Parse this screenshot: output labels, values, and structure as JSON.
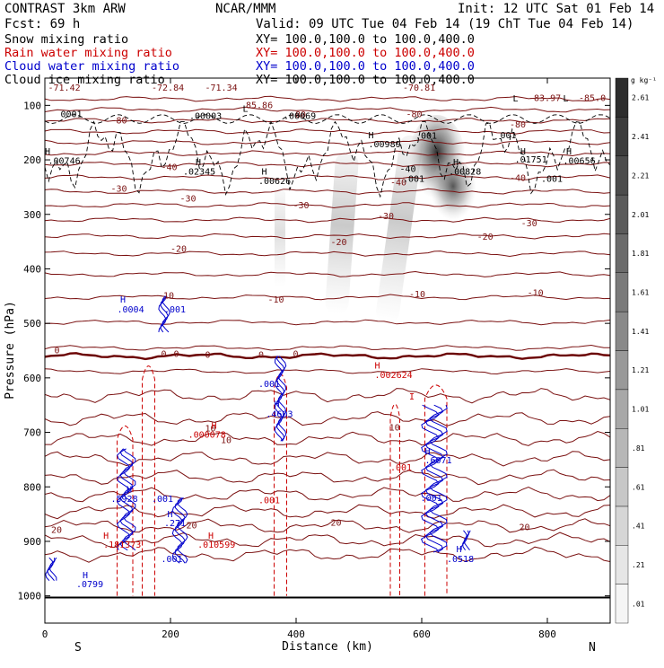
{
  "header": {
    "left_title": "CONTRAST  3km ARW",
    "center_title": "NCAR/MMM",
    "init": "Init: 12 UTC Sat 01 Feb 14",
    "fcst": "Fcst:   69 h",
    "valid": "Valid: 09 UTC Tue 04 Feb 14 (19 ChT Tue 04 Feb 14)"
  },
  "fields": [
    {
      "name": "Snow mixing ratio",
      "xy": "XY= 100.0,100.0 to 100.0,400.0",
      "color": "#000000"
    },
    {
      "name": "Rain water mixing ratio",
      "xy": "XY= 100.0,100.0 to 100.0,400.0",
      "color": "#cc0000"
    },
    {
      "name": "Cloud water mixing ratio",
      "xy": "XY= 100.0,100.0 to 100.0,400.0",
      "color": "#0000cc"
    },
    {
      "name": "Cloud ice mixing ratio",
      "xy": "XY= 100.0,100.0 to 100.0,400.0",
      "color": "#000000"
    }
  ],
  "chart_data": {
    "type": "cross-section",
    "xlabel": "Distance (km)",
    "ylabel": "Pressure (hPa)",
    "xlim": [
      0,
      900
    ],
    "ylim": [
      1050,
      50
    ],
    "xticks": [
      0,
      200,
      400,
      600,
      800
    ],
    "yticks": [
      100,
      200,
      300,
      400,
      500,
      600,
      700,
      800,
      900,
      1000
    ],
    "end_labels": {
      "left": "S",
      "right": "N"
    },
    "colorbar": {
      "unit": "g kg⁻¹",
      "levels": [
        0.01,
        0.21,
        0.41,
        0.61,
        0.81,
        1.01,
        1.21,
        1.41,
        1.61,
        1.81,
        2.01,
        2.21,
        2.41,
        2.61
      ],
      "labels": [
        ".01",
        ".21",
        ".41",
        ".61",
        ".81",
        "1.01",
        "1.21",
        "1.41",
        "1.61",
        "1.81",
        "2.01",
        "2.21",
        "2.41",
        "2.61"
      ]
    },
    "temperature_contours": {
      "color": "#7a1010",
      "pressures": [
        88,
        108,
        128,
        148,
        168,
        188,
        208,
        232,
        258,
        283,
        310,
        340,
        372,
        410,
        452,
        498,
        545,
        588,
        632,
        675,
        712,
        748,
        782,
        814,
        845,
        872,
        898,
        924
      ],
      "labels": [
        {
          "x": 105,
          "p": 127,
          "text": "-80"
        },
        {
          "x": 390,
          "p": 116,
          "text": "-80"
        },
        {
          "x": 575,
          "p": 115,
          "text": "-80"
        },
        {
          "x": 740,
          "p": 134,
          "text": "-80"
        },
        {
          "x": 185,
          "p": 212,
          "text": "-40"
        },
        {
          "x": 550,
          "p": 240,
          "text": "-40"
        },
        {
          "x": 740,
          "p": 232,
          "text": "-40"
        },
        {
          "x": 105,
          "p": 252,
          "text": "-30"
        },
        {
          "x": 215,
          "p": 270,
          "text": "-30"
        },
        {
          "x": 395,
          "p": 282,
          "text": "-30"
        },
        {
          "x": 530,
          "p": 302,
          "text": "-30"
        },
        {
          "x": 758,
          "p": 315,
          "text": "-30"
        },
        {
          "x": 200,
          "p": 362,
          "text": "-20"
        },
        {
          "x": 455,
          "p": 350,
          "text": "-20"
        },
        {
          "x": 688,
          "p": 340,
          "text": "-20"
        },
        {
          "x": 180,
          "p": 448,
          "text": "-10"
        },
        {
          "x": 355,
          "p": 455,
          "text": "-10"
        },
        {
          "x": 580,
          "p": 445,
          "text": "-10"
        },
        {
          "x": 768,
          "p": 443,
          "text": "-10"
        },
        {
          "x": 15,
          "p": 548,
          "text": "0"
        },
        {
          "x": 185,
          "p": 555,
          "text": "0"
        },
        {
          "x": 205,
          "p": 555,
          "text": "0"
        },
        {
          "x": 255,
          "p": 557,
          "text": "0"
        },
        {
          "x": 340,
          "p": 557,
          "text": "0"
        },
        {
          "x": 395,
          "p": 555,
          "text": "0"
        },
        {
          "x": 255,
          "p": 692,
          "text": "10"
        },
        {
          "x": 548,
          "p": 690,
          "text": "10"
        },
        {
          "x": 280,
          "p": 713,
          "text": "10"
        },
        {
          "x": 10,
          "p": 878,
          "text": "20"
        },
        {
          "x": 225,
          "p": 870,
          "text": "20"
        },
        {
          "x": 455,
          "p": 865,
          "text": "20"
        },
        {
          "x": 755,
          "p": 873,
          "text": "20"
        }
      ]
    },
    "temperature_extrema": [
      {
        "x": 5,
        "p": 73,
        "text": "-71.42"
      },
      {
        "x": 170,
        "p": 73,
        "text": "-72.84"
      },
      {
        "x": 255,
        "p": 73,
        "text": "-71.34"
      },
      {
        "x": 570,
        "p": 73,
        "text": "-70.81"
      },
      {
        "x": 770,
        "p": 92,
        "text": "-83.97"
      },
      {
        "x": 850,
        "p": 92,
        "text": "-85.0"
      },
      {
        "x": 320,
        "p": 105,
        "text": "85.86"
      }
    ],
    "rain_freezing_line_p": 560,
    "rain_columns": [
      {
        "x0": 115,
        "x1": 140,
        "p_top": 680
      },
      {
        "x0": 155,
        "x1": 175,
        "p_top": 570
      },
      {
        "x0": 365,
        "x1": 385,
        "p_top": 585
      },
      {
        "x0": 550,
        "x1": 565,
        "p_top": 640
      },
      {
        "x0": 605,
        "x1": 640,
        "p_top": 605
      }
    ],
    "rain_labels": [
      {
        "x": 93,
        "p": 895,
        "text": "H"
      },
      {
        "x": 93,
        "p": 912,
        "text": ".181373"
      },
      {
        "x": 260,
        "p": 895,
        "text": "H"
      },
      {
        "x": 243,
        "p": 912,
        "text": ".010599"
      },
      {
        "x": 265,
        "p": 693,
        "text": "H"
      },
      {
        "x": 228,
        "p": 710,
        "text": ".000078"
      },
      {
        "x": 525,
        "p": 583,
        "text": "H"
      },
      {
        "x": 525,
        "p": 600,
        "text": ".002624"
      },
      {
        "x": 580,
        "p": 640,
        "text": "I"
      },
      {
        "x": 550,
        "p": 770,
        "text": ".001"
      },
      {
        "x": 340,
        "p": 830,
        "text": ".001"
      }
    ],
    "cloud_water_labels": [
      {
        "x": 120,
        "p": 462,
        "text": "H"
      },
      {
        "x": 115,
        "p": 480,
        "text": ".0004"
      },
      {
        "x": 190,
        "p": 480,
        "text": ".001"
      },
      {
        "x": 340,
        "p": 617,
        "text": ".001"
      },
      {
        "x": 365,
        "p": 654,
        "text": "H"
      },
      {
        "x": 352,
        "p": 672,
        "text": ".4603"
      },
      {
        "x": 130,
        "p": 810,
        "text": "H"
      },
      {
        "x": 105,
        "p": 828,
        "text": ".5928"
      },
      {
        "x": 170,
        "p": 828,
        "text": ".001"
      },
      {
        "x": 195,
        "p": 856,
        "text": "H"
      },
      {
        "x": 190,
        "p": 872,
        "text": ".271"
      },
      {
        "x": 185,
        "p": 938,
        "text": ".001"
      },
      {
        "x": 60,
        "p": 968,
        "text": "H"
      },
      {
        "x": 50,
        "p": 984,
        "text": ".0799"
      },
      {
        "x": 605,
        "p": 740,
        "text": "H"
      },
      {
        "x": 605,
        "p": 757,
        "text": ".6071"
      },
      {
        "x": 598,
        "p": 826,
        "text": ".001"
      },
      {
        "x": 655,
        "p": 920,
        "text": "H"
      },
      {
        "x": 640,
        "p": 938,
        "text": ".0518"
      }
    ],
    "ice_labels": [
      {
        "x": 25,
        "p": 122,
        "text": "0001"
      },
      {
        "x": 230,
        "p": 125,
        "text": ".00003"
      },
      {
        "x": 380,
        "p": 125,
        "text": ".00069"
      },
      {
        "x": 315,
        "p": 112,
        "text": "L"
      },
      {
        "x": 0,
        "p": 190,
        "text": "H"
      },
      {
        "x": 5,
        "p": 207,
        "text": ".00746"
      },
      {
        "x": 240,
        "p": 210,
        "text": "H"
      },
      {
        "x": 220,
        "p": 227,
        "text": ".02345"
      },
      {
        "x": 345,
        "p": 227,
        "text": "H"
      },
      {
        "x": 340,
        "p": 244,
        "text": ".00626"
      },
      {
        "x": 515,
        "p": 160,
        "text": "H"
      },
      {
        "x": 515,
        "p": 177,
        "text": ".00989"
      },
      {
        "x": 590,
        "p": 161,
        "text": ".001"
      },
      {
        "x": 725,
        "p": 160,
        "text": "001"
      },
      {
        "x": 757,
        "p": 190,
        "text": "H"
      },
      {
        "x": 748,
        "p": 205,
        "text": ".01751"
      },
      {
        "x": 830,
        "p": 190,
        "text": "H"
      },
      {
        "x": 825,
        "p": 207,
        "text": ".00656"
      },
      {
        "x": 650,
        "p": 210,
        "text": "H"
      },
      {
        "x": 643,
        "p": 227,
        "text": ".00828"
      },
      {
        "x": 570,
        "p": 240,
        "text": ".001"
      },
      {
        "x": 790,
        "p": 240,
        "text": ".001"
      },
      {
        "x": 565,
        "p": 222,
        "text": "-40"
      },
      {
        "x": 745,
        "p": 93,
        "text": "L"
      },
      {
        "x": 825,
        "p": 93,
        "text": "L"
      }
    ]
  }
}
